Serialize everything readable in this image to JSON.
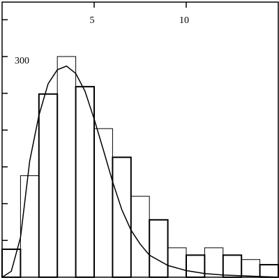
{
  "chart_data": {
    "type": "histogram",
    "bins": [
      0,
      1,
      2,
      3,
      4,
      5,
      6,
      7,
      8,
      9,
      10,
      11,
      12,
      13,
      14,
      15
    ],
    "values": [
      38,
      138,
      249,
      300,
      259,
      202,
      163,
      110,
      78,
      40,
      30,
      40,
      30,
      24,
      17
    ],
    "color": "#000000",
    "curve": {
      "x": [
        0,
        0.5,
        1,
        1.5,
        2,
        2.5,
        3,
        3.5,
        4,
        4.5,
        5,
        5.5,
        6,
        6.5,
        7,
        7.5,
        8,
        9,
        10,
        11,
        12,
        13,
        14,
        15
      ],
      "y": [
        0,
        8,
        54,
        158,
        220,
        263,
        282,
        287,
        277,
        253,
        215,
        173,
        130,
        92,
        64,
        45,
        30,
        16,
        9,
        5,
        3,
        2,
        1,
        0
      ]
    },
    "xlim": [
      0,
      15
    ],
    "xticks": [
      5,
      10
    ],
    "ylim": [
      0,
      374
    ],
    "yticks": [
      300
    ],
    "yminor_ticks": [
      50,
      100,
      150,
      200,
      250,
      350
    ]
  }
}
